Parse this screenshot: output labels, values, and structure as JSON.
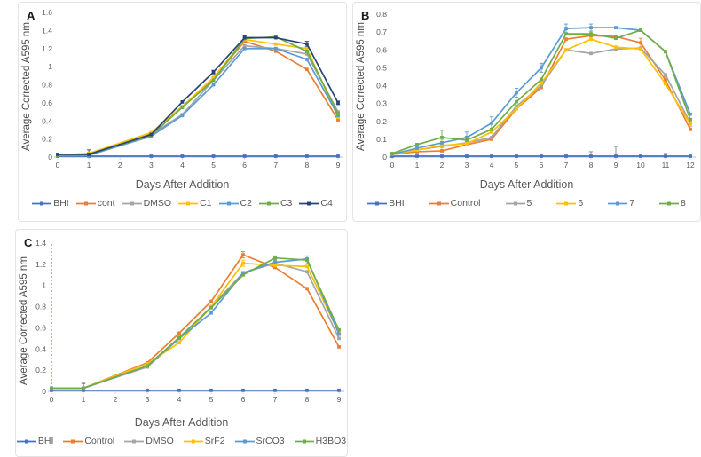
{
  "figure": {
    "background": "#ffffff",
    "axis_color": "#bfbfbf",
    "tick_label_color": "#595959"
  },
  "chart_data": [
    {
      "type": "line",
      "panel_label": "A",
      "xlabel": "Days After Addition",
      "ylabel": "Average Corrected A595 nm",
      "x": [
        0,
        1,
        3,
        4,
        5,
        6,
        7,
        8,
        9
      ],
      "xticks": [
        0,
        1,
        2,
        3,
        4,
        5,
        6,
        7,
        8,
        9
      ],
      "xlim": [
        0,
        9
      ],
      "ylim": [
        0,
        1.6
      ],
      "yticks": [
        0,
        0.2,
        0.4,
        0.6,
        0.8,
        1,
        1.2,
        1.4,
        1.6
      ],
      "grid": false,
      "legend_position": "bottom",
      "series": [
        {
          "name": "BHI",
          "color": "#4472C4",
          "values": [
            0.01,
            0.01,
            0.01,
            0.01,
            0.01,
            0.01,
            0.01,
            0.01,
            0.01
          ]
        },
        {
          "name": "cont",
          "color": "#ED7D31",
          "values": [
            0.02,
            0.04,
            0.26,
            0.55,
            0.87,
            1.28,
            1.17,
            0.97,
            0.41
          ]
        },
        {
          "name": "DMSO",
          "color": "#A5A5A5",
          "values": [
            0.02,
            0.03,
            0.25,
            0.47,
            0.85,
            1.23,
            1.2,
            1.14,
            0.5
          ]
        },
        {
          "name": "C1",
          "color": "#FFC000",
          "values": [
            0.02,
            0.04,
            0.27,
            0.56,
            0.88,
            1.3,
            1.25,
            1.2,
            0.44
          ]
        },
        {
          "name": "C2",
          "color": "#5B9BD5",
          "values": [
            0.02,
            0.02,
            0.23,
            0.46,
            0.8,
            1.2,
            1.2,
            1.08,
            0.46
          ]
        },
        {
          "name": "C3",
          "color": "#70AD47",
          "values": [
            0.02,
            0.03,
            0.24,
            0.55,
            0.85,
            1.31,
            1.33,
            1.17,
            0.48
          ]
        },
        {
          "name": "C4",
          "color": "#264478",
          "values": [
            0.03,
            0.03,
            0.25,
            0.61,
            0.94,
            1.32,
            1.32,
            1.25,
            0.6
          ]
        }
      ],
      "error_bars": [
        {
          "x": 1,
          "y": 0.05,
          "e": 0.03,
          "color": "#404040"
        },
        {
          "x": 5,
          "y": 0.94,
          "e": 0.02,
          "color": "#264478"
        },
        {
          "x": 6,
          "y": 1.32,
          "e": 0.02,
          "color": "#264478"
        },
        {
          "x": 8,
          "y": 1.25,
          "e": 0.03,
          "color": "#264478"
        },
        {
          "x": 9,
          "y": 0.6,
          "e": 0.02,
          "color": "#264478"
        }
      ]
    },
    {
      "type": "line",
      "panel_label": "B",
      "xlabel": "Days After Addition",
      "ylabel": "Average Corrected A595 nm",
      "x": [
        0,
        1,
        2,
        3,
        4,
        5,
        6,
        7,
        8,
        9,
        10,
        11,
        12
      ],
      "xticks": [
        0,
        1,
        2,
        3,
        4,
        5,
        6,
        7,
        8,
        9,
        10,
        11,
        12
      ],
      "xlim": [
        0,
        12
      ],
      "ylim": [
        0,
        0.8
      ],
      "yticks": [
        0,
        0.1,
        0.2,
        0.3,
        0.4,
        0.5,
        0.6,
        0.7,
        0.8
      ],
      "grid": false,
      "legend_position": "bottom",
      "series": [
        {
          "name": "BHI",
          "color": "#4472C4",
          "values": [
            0.005,
            0.005,
            0.005,
            0.005,
            0.005,
            0.005,
            0.005,
            0.005,
            0.005,
            0.005,
            0.005,
            0.005,
            0.005
          ]
        },
        {
          "name": "Control",
          "color": "#ED7D31",
          "values": [
            0.015,
            0.03,
            0.035,
            0.07,
            0.1,
            0.27,
            0.39,
            0.66,
            0.68,
            0.675,
            0.64,
            0.43,
            0.155
          ]
        },
        {
          "name": "5",
          "color": "#A5A5A5",
          "values": [
            0.015,
            0.04,
            0.06,
            0.08,
            0.11,
            0.285,
            0.4,
            0.6,
            0.58,
            0.605,
            0.61,
            0.46,
            0.19
          ]
        },
        {
          "name": "6",
          "color": "#FFC000",
          "values": [
            0.015,
            0.04,
            0.065,
            0.075,
            0.14,
            0.27,
            0.415,
            0.6,
            0.66,
            0.615,
            0.605,
            0.41,
            0.185
          ]
        },
        {
          "name": "7",
          "color": "#5B9BD5",
          "values": [
            0.015,
            0.05,
            0.08,
            0.11,
            0.19,
            0.36,
            0.5,
            0.72,
            0.725,
            0.725,
            0.71,
            0.59,
            0.24
          ]
        },
        {
          "name": "8",
          "color": "#70AD47",
          "values": [
            0.02,
            0.07,
            0.11,
            0.095,
            0.155,
            0.31,
            0.435,
            0.69,
            0.69,
            0.665,
            0.71,
            0.59,
            0.21
          ]
        }
      ],
      "error_bars": [
        {
          "x": 2,
          "y": 0.11,
          "e": 0.04,
          "color": "#70AD47"
        },
        {
          "x": 2,
          "y": 0.065,
          "e": 0.03,
          "color": "#FFC000"
        },
        {
          "x": 3,
          "y": 0.11,
          "e": 0.03,
          "color": "#5B9BD5"
        },
        {
          "x": 4,
          "y": 0.19,
          "e": 0.035,
          "color": "#5B9BD5"
        },
        {
          "x": 5,
          "y": 0.36,
          "e": 0.025,
          "color": "#5B9BD5"
        },
        {
          "x": 6,
          "y": 0.5,
          "e": 0.025,
          "color": "#5B9BD5"
        },
        {
          "x": 7,
          "y": 0.72,
          "e": 0.025,
          "color": "#5B9BD5"
        },
        {
          "x": 8,
          "y": 0.725,
          "e": 0.02,
          "color": "#5B9BD5"
        },
        {
          "x": 8,
          "y": 0.69,
          "e": 0.035,
          "color": "#70AD47"
        },
        {
          "x": 8,
          "y": 0.005,
          "e": 0.025,
          "color": "#7f7f7f"
        },
        {
          "x": 9,
          "y": 0.005,
          "e": 0.055,
          "color": "#7f7f7f"
        },
        {
          "x": 10,
          "y": 0.64,
          "e": 0.025,
          "color": "#ED7D31"
        },
        {
          "x": 11,
          "y": 0.43,
          "e": 0.02,
          "color": "#ED7D31"
        },
        {
          "x": 11,
          "y": 0.005,
          "e": 0.015,
          "color": "#7f7f7f"
        },
        {
          "x": 12,
          "y": 0.19,
          "e": 0.02,
          "color": "#A5A5A5"
        }
      ]
    },
    {
      "type": "line",
      "panel_label": "C",
      "xlabel": "Days After Addition",
      "ylabel": "Average Corrected A595 nm",
      "x": [
        0,
        1,
        3,
        4,
        5,
        6,
        7,
        8,
        9
      ],
      "xticks": [
        0,
        1,
        2,
        3,
        4,
        5,
        6,
        7,
        8,
        9
      ],
      "xlim": [
        0,
        9
      ],
      "ylim": [
        0,
        1.4
      ],
      "yticks": [
        0,
        0.2,
        0.4,
        0.6,
        0.8,
        1,
        1.2,
        1.4
      ],
      "grid": false,
      "legend_position": "bottom",
      "vline": {
        "x": 0,
        "from": 0,
        "to": 1.4,
        "color": "#4472C4",
        "dashed": true
      },
      "series": [
        {
          "name": "BHI",
          "color": "#4472C4",
          "values": [
            0.01,
            0.01,
            0.01,
            0.01,
            0.01,
            0.01,
            0.01,
            0.01,
            0.01
          ]
        },
        {
          "name": "Control",
          "color": "#ED7D31",
          "values": [
            0.03,
            0.03,
            0.27,
            0.55,
            0.85,
            1.29,
            1.17,
            0.97,
            0.42
          ]
        },
        {
          "name": "DMSO",
          "color": "#A5A5A5",
          "values": [
            0.03,
            0.03,
            0.23,
            0.5,
            0.8,
            1.12,
            1.21,
            1.13,
            0.5
          ]
        },
        {
          "name": "SrF2",
          "color": "#FFC000",
          "values": [
            0.03,
            0.03,
            0.26,
            0.46,
            0.8,
            1.21,
            1.19,
            1.18,
            0.55
          ]
        },
        {
          "name": "SrCO3",
          "color": "#5B9BD5",
          "values": [
            0.03,
            0.03,
            0.24,
            0.5,
            0.74,
            1.12,
            1.22,
            1.25,
            0.54
          ]
        },
        {
          "name": "H3BO3",
          "color": "#70AD47",
          "values": [
            0.03,
            0.03,
            0.24,
            0.51,
            0.79,
            1.1,
            1.26,
            1.24,
            0.58
          ]
        }
      ],
      "error_bars": [
        {
          "x": 1,
          "y": 0.05,
          "e": 0.025,
          "color": "#404040"
        },
        {
          "x": 6,
          "y": 1.29,
          "e": 0.03,
          "color": "#ED7D31"
        },
        {
          "x": 6,
          "y": 1.21,
          "e": 0.03,
          "color": "#FFC000"
        },
        {
          "x": 7,
          "y": 1.26,
          "e": 0.02,
          "color": "#70AD47"
        },
        {
          "x": 8,
          "y": 1.26,
          "e": 0.02,
          "color": "#5B9BD5"
        },
        {
          "x": 8,
          "y": 1.23,
          "e": 0.025,
          "color": "#70AD47"
        }
      ]
    }
  ]
}
